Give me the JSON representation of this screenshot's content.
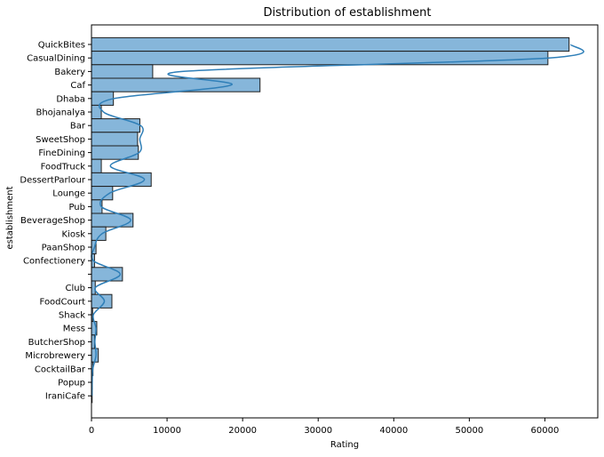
{
  "chart_data": {
    "type": "bar",
    "orientation": "horizontal",
    "title": "Distribution of establishment",
    "xlabel": "Rating",
    "ylabel": "establishment",
    "xlim": [
      0,
      67000
    ],
    "x_ticks": [
      0,
      10000,
      20000,
      30000,
      40000,
      50000,
      60000
    ],
    "x_tick_labels": [
      "0",
      "10000",
      "20000",
      "30000",
      "40000",
      "50000",
      "60000"
    ],
    "grid": false,
    "legend": "none",
    "kde_overlay": true,
    "colors": {
      "bar_fill": "#86b6da",
      "bar_edge": "#1f1f1f",
      "kde_line": "#2f7fb8",
      "axis": "#000000"
    },
    "categories": [
      "QuickBites",
      "CasualDining",
      "Bakery",
      "Caf",
      "Dhaba",
      "Bhojanalya",
      "Bar",
      "SweetShop",
      "FineDining",
      "FoodTruck",
      "DessertParlour",
      "Lounge",
      "Pub",
      "BeverageShop",
      "Kiosk",
      "PaanShop",
      "Confectionery",
      "",
      "Club",
      "FoodCourt",
      "Shack",
      "Mess",
      "ButcherShop",
      "Microbrewery",
      "CocktailBar",
      "Popup",
      "IraniCafe"
    ],
    "values": [
      63200,
      60400,
      8100,
      22300,
      2900,
      1300,
      6400,
      6100,
      6200,
      1300,
      7900,
      2800,
      1400,
      5500,
      1900,
      600,
      400,
      4100,
      500,
      2700,
      150,
      700,
      400,
      900,
      200,
      100,
      80
    ],
    "kde": [
      63500,
      60500,
      12000,
      18500,
      3000,
      1600,
      6500,
      6400,
      6300,
      2500,
      7000,
      2400,
      1300,
      5200,
      1400,
      400,
      250,
      3800,
      500,
      1700,
      250,
      600,
      450,
      600,
      180,
      90,
      70
    ]
  }
}
